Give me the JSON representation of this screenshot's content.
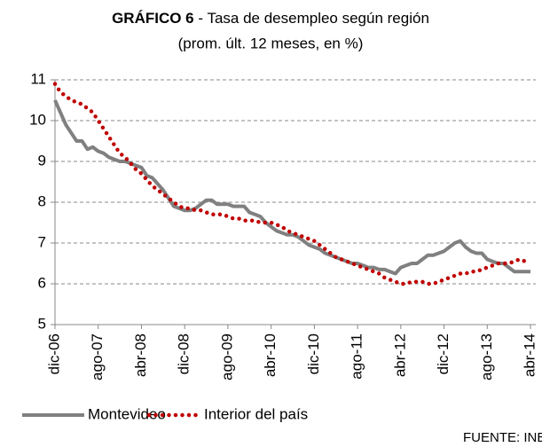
{
  "chart_data": {
    "type": "line",
    "title": "GRÁFICO 6",
    "subtitle": "- Tasa de desempleo según región",
    "subtitle2": "(prom. últ. 12 meses, en %)",
    "source": "FUENTE: INE",
    "categories": [
      "dic-06",
      null,
      null,
      null,
      null,
      null,
      null,
      null,
      "ago-07",
      null,
      null,
      null,
      null,
      null,
      null,
      null,
      "abr-08",
      null,
      null,
      null,
      null,
      null,
      null,
      null,
      "dic-08",
      null,
      null,
      null,
      null,
      null,
      null,
      null,
      "ago-09",
      null,
      null,
      null,
      null,
      null,
      null,
      null,
      "abr-10",
      null,
      null,
      null,
      null,
      null,
      null,
      null,
      "dic-10",
      null,
      null,
      null,
      null,
      null,
      null,
      null,
      "ago-11",
      null,
      null,
      null,
      null,
      null,
      null,
      null,
      "abr-12",
      null,
      null,
      null,
      null,
      null,
      null,
      null,
      "dic-12",
      null,
      null,
      null,
      null,
      null,
      null,
      null,
      "ago-13",
      null,
      null,
      null,
      null,
      null,
      null,
      null,
      "abr-14"
    ],
    "series": [
      {
        "name": "Montevideo",
        "color": "#808080",
        "style": "solid",
        "values": [
          10.5,
          10.2,
          9.9,
          9.7,
          9.5,
          9.5,
          9.3,
          9.35,
          9.25,
          9.2,
          9.1,
          9.05,
          9.0,
          9.0,
          8.95,
          8.9,
          8.85,
          8.65,
          8.6,
          8.45,
          8.3,
          8.1,
          7.9,
          7.85,
          7.8,
          7.8,
          7.85,
          7.95,
          8.05,
          8.05,
          7.95,
          7.95,
          7.95,
          7.9,
          7.9,
          7.9,
          7.75,
          7.7,
          7.65,
          7.5,
          7.4,
          7.3,
          7.25,
          7.2,
          7.2,
          7.15,
          7.05,
          6.95,
          6.9,
          6.85,
          6.75,
          6.7,
          6.65,
          6.6,
          6.55,
          6.5,
          6.5,
          6.45,
          6.4,
          6.4,
          6.35,
          6.35,
          6.3,
          6.25,
          6.4,
          6.45,
          6.5,
          6.5,
          6.6,
          6.7,
          6.7,
          6.75,
          6.8,
          6.9,
          7.0,
          7.05,
          6.9,
          6.8,
          6.75,
          6.75,
          6.6,
          6.55,
          6.5,
          6.5,
          6.4,
          6.3,
          6.3,
          6.3,
          6.3
        ]
      },
      {
        "name": "Interior del país",
        "color": "#c00000",
        "style": "dotted",
        "values": [
          10.9,
          10.7,
          10.6,
          10.5,
          10.45,
          10.4,
          10.3,
          10.2,
          10.0,
          9.8,
          9.6,
          9.4,
          9.2,
          9.1,
          8.95,
          8.8,
          8.7,
          8.55,
          8.4,
          8.3,
          8.2,
          8.1,
          8.0,
          7.9,
          7.85,
          7.85,
          7.8,
          7.8,
          7.75,
          7.7,
          7.7,
          7.7,
          7.65,
          7.6,
          7.6,
          7.55,
          7.55,
          7.55,
          7.5,
          7.5,
          7.5,
          7.45,
          7.4,
          7.3,
          7.25,
          7.2,
          7.15,
          7.1,
          7.05,
          6.95,
          6.85,
          6.75,
          6.65,
          6.6,
          6.55,
          6.5,
          6.45,
          6.4,
          6.35,
          6.3,
          6.25,
          6.15,
          6.1,
          6.05,
          6.0,
          6.0,
          6.05,
          6.05,
          6.05,
          6.0,
          6.0,
          6.05,
          6.1,
          6.15,
          6.2,
          6.25,
          6.25,
          6.3,
          6.3,
          6.35,
          6.4,
          6.45,
          6.5,
          6.5,
          6.5,
          6.55,
          6.6,
          6.55,
          6.55
        ]
      }
    ],
    "ylim": [
      5,
      11
    ],
    "yticks": [
      5,
      6,
      7,
      8,
      9,
      10,
      11
    ],
    "grid": true
  }
}
